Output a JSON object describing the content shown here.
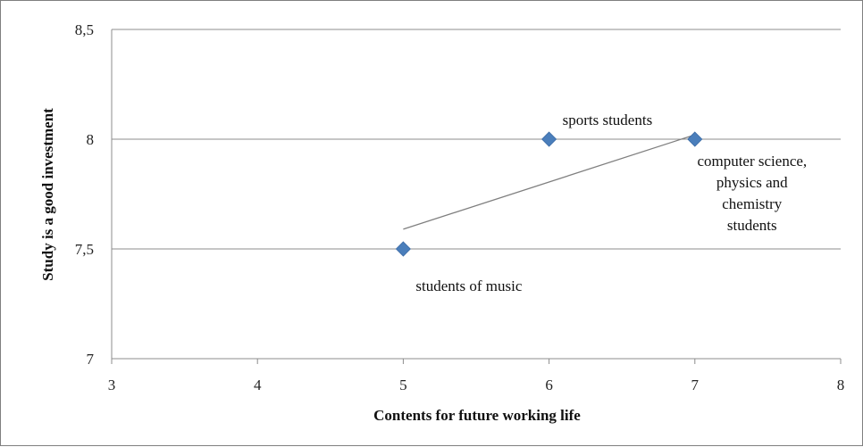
{
  "chart_data": {
    "type": "scatter",
    "xlabel": "Contents for future working life",
    "ylabel": "Study is a good investment",
    "xlim": [
      3,
      8
    ],
    "ylim": [
      7,
      8.5
    ],
    "x_ticks": [
      "3",
      "4",
      "5",
      "6",
      "7",
      "8"
    ],
    "y_ticks": [
      "7",
      "7,5",
      "8",
      "8,5"
    ],
    "grid": "horizontal",
    "marker_color": "#4a7ebb",
    "trendline": {
      "type": "linear",
      "x_range": [
        5,
        7
      ],
      "y_start": 7.59,
      "y_end": 8.02,
      "color": "#7f7f7f"
    },
    "series": [
      {
        "points": [
          {
            "x": 5,
            "y": 7.5,
            "label": [
              "students of music"
            ]
          },
          {
            "x": 6,
            "y": 8.0,
            "label": [
              "sports students"
            ]
          },
          {
            "x": 7,
            "y": 8.0,
            "label": [
              "computer science,",
              "physics and",
              "chemistry",
              "students"
            ]
          }
        ]
      }
    ]
  }
}
